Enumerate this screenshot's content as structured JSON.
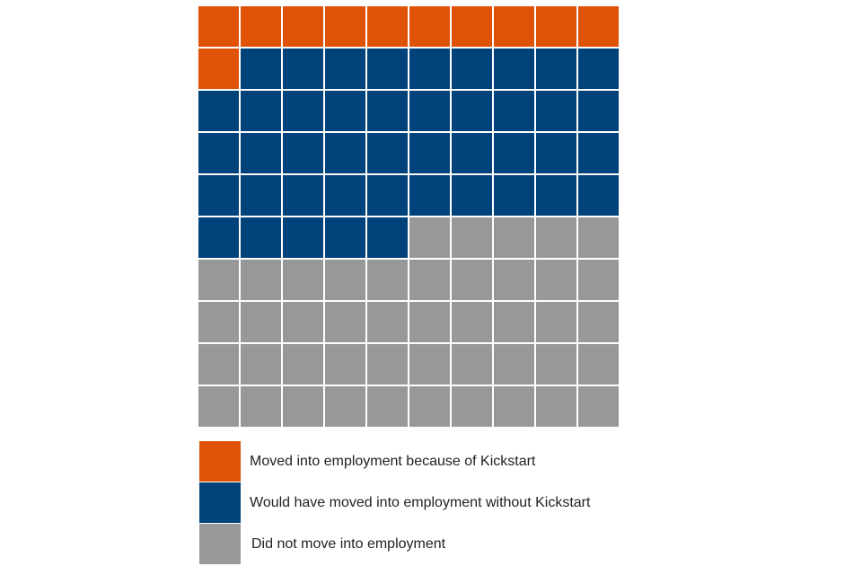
{
  "chart_data": {
    "type": "waffle",
    "grid": {
      "rows": 10,
      "cols": 10,
      "fill_order": "row-major"
    },
    "series": [
      {
        "name": "Moved into employment because of Kickstart",
        "value": 11,
        "color": "#e05206"
      },
      {
        "name": "Would have moved into employment without Kickstart",
        "value": 44,
        "color": "#00427a"
      },
      {
        "name": "Did not move into employment",
        "value": 45,
        "color": "#97989a"
      }
    ],
    "legend_position": "bottom"
  }
}
